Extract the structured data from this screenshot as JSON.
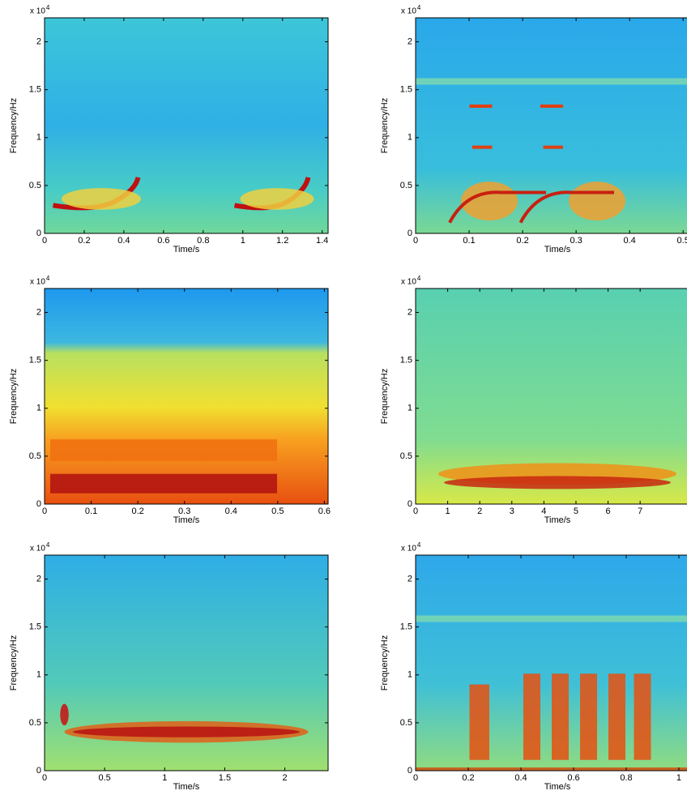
{
  "chart_data": [
    {
      "type": "spectrogram",
      "xlabel": "Time/s",
      "ylabel": "Frequency/Hz",
      "y_multiplier": "x 10",
      "y_exponent": "4",
      "xlim": [
        0,
        1.43
      ],
      "xticks": [
        0,
        0.2,
        0.4,
        0.6,
        0.8,
        1,
        1.2,
        1.4
      ],
      "ylim": [
        0,
        2.25
      ],
      "yticks": [
        0,
        0.5,
        1,
        1.5,
        2
      ]
    },
    {
      "type": "spectrogram",
      "xlabel": "Time/s",
      "ylabel": "Frequency/Hz",
      "y_multiplier": "x 10",
      "y_exponent": "4",
      "xlim": [
        0,
        0.53
      ],
      "xticks": [
        0,
        0.1,
        0.2,
        0.3,
        0.4,
        0.5
      ],
      "ylim": [
        0,
        2.25
      ],
      "yticks": [
        0,
        0.5,
        1,
        1.5,
        2
      ]
    },
    {
      "type": "spectrogram",
      "xlabel": "Time/s",
      "ylabel": "Frequency/Hz",
      "y_multiplier": "x 10",
      "y_exponent": "4",
      "xlim": [
        0,
        0.608
      ],
      "xticks": [
        0,
        0.1,
        0.2,
        0.3,
        0.4,
        0.5,
        0.6
      ],
      "ylim": [
        0,
        2.25
      ],
      "yticks": [
        0,
        0.5,
        1,
        1.5,
        2
      ]
    },
    {
      "type": "spectrogram",
      "xlabel": "Time/s",
      "ylabel": "Frequency/Hz",
      "y_multiplier": "x 10",
      "y_exponent": "4",
      "xlim": [
        0,
        8.84
      ],
      "xticks": [
        0,
        1,
        2,
        3,
        4,
        5,
        6,
        7
      ],
      "ylim": [
        0,
        2.25
      ],
      "yticks": [
        0,
        0.5,
        1,
        1.5,
        2
      ]
    },
    {
      "type": "spectrogram",
      "xlabel": "Time/s",
      "ylabel": "Frequency/Hz",
      "y_multiplier": "x 10",
      "y_exponent": "4",
      "xlim": [
        0,
        2.36
      ],
      "xticks": [
        0,
        0.5,
        1,
        1.5,
        2
      ],
      "ylim": [
        0,
        2.25
      ],
      "yticks": [
        0,
        0.5,
        1,
        1.5,
        2
      ]
    },
    {
      "type": "spectrogram",
      "xlabel": "Time/s",
      "ylabel": "Frequency/Hz",
      "y_multiplier": "x 10",
      "y_exponent": "4",
      "xlim": [
        0,
        1.077
      ],
      "xticks": [
        0,
        0.2,
        0.4,
        0.6,
        0.8,
        1
      ],
      "ylim": [
        0,
        2.25
      ],
      "yticks": [
        0,
        0.5,
        1,
        1.5,
        2
      ]
    }
  ]
}
